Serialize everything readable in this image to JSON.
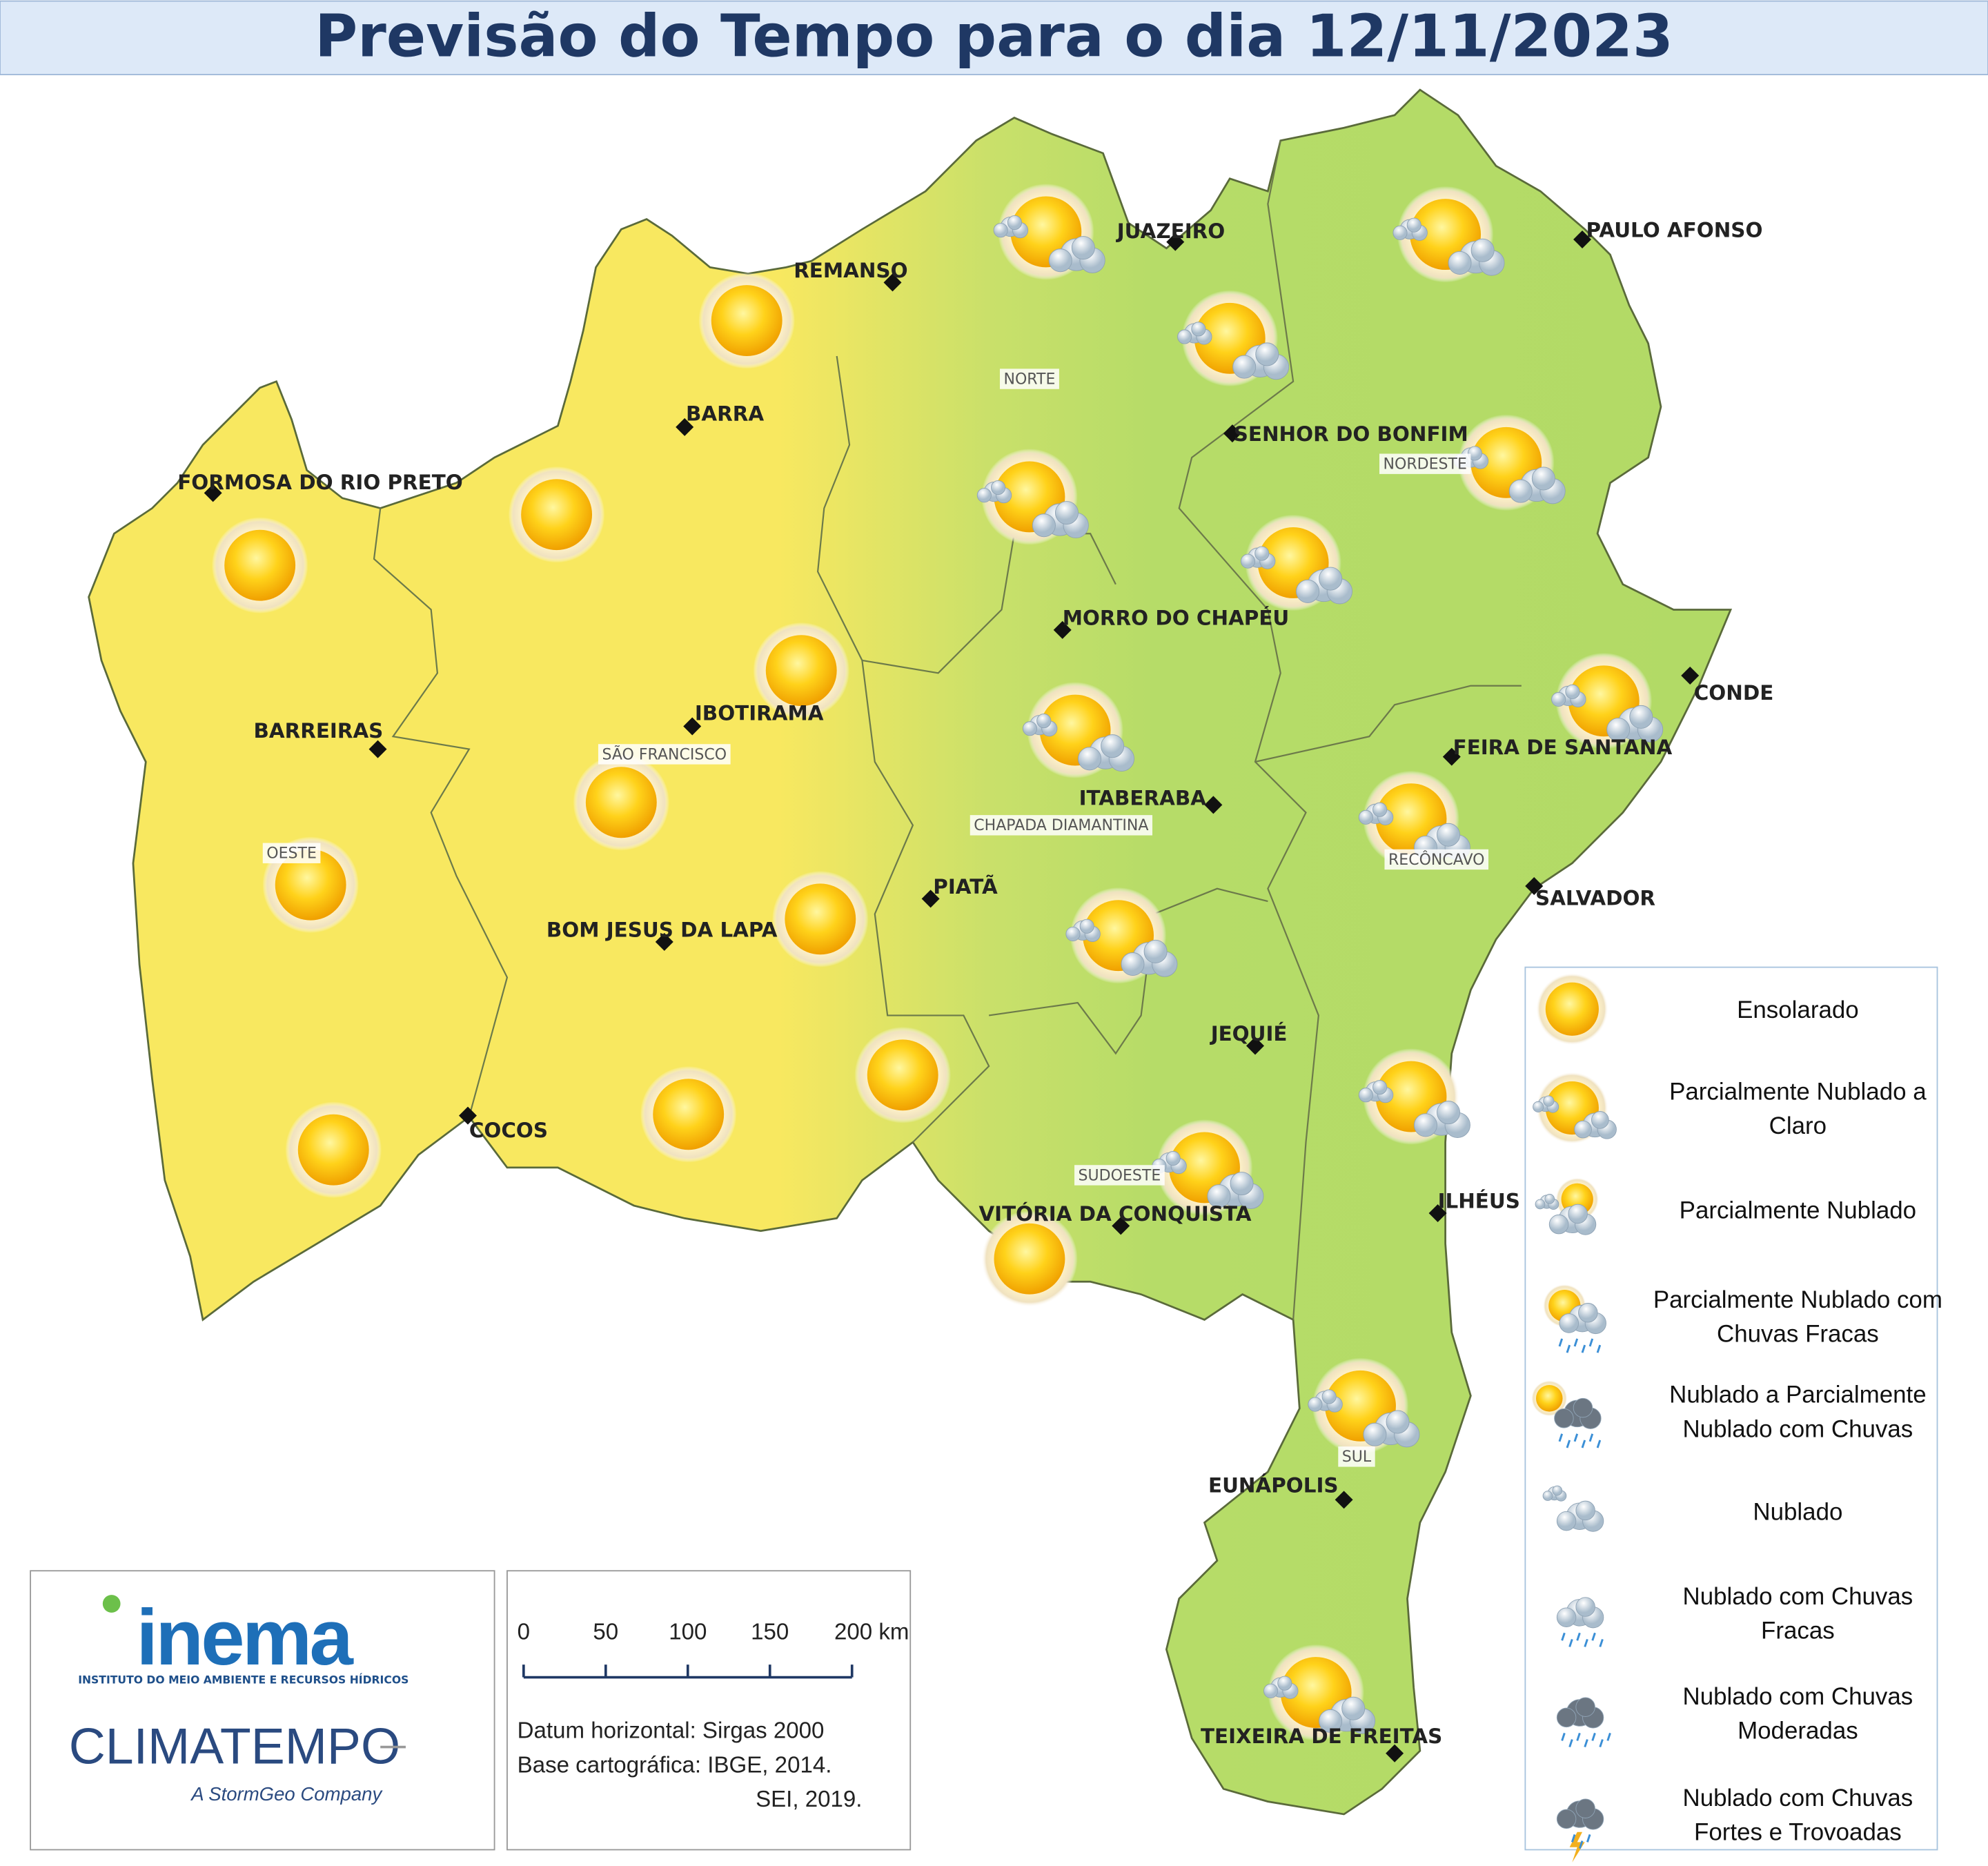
{
  "header": {
    "title": "Previsão do Tempo para o dia 12/11/2023"
  },
  "cities": [
    "REMANSO",
    "JUAZEIRO",
    "PAULO AFONSO",
    "BARRA",
    "FORMOSA DO RIO PRETO",
    "SENHOR DO BONFIM",
    "MORRO DO CHAPÉU",
    "CONDE",
    "IBOTIRAMA",
    "BARREIRAS",
    "FEIRA DE SANTANA",
    "ITABERABA",
    "PIATÃ",
    "SALVADOR",
    "BOM JESUS DA LAPA",
    "JEQUIÉ",
    "COCOS",
    "ILHÉUS",
    "VITÓRIA DA CONQUISTA",
    "EUNÁPOLIS",
    "TEIXEIRA DE FREITAS"
  ],
  "regions": [
    "NORTE",
    "NORDESTE",
    "SÃO FRANCISCO",
    "OESTE",
    "CHAPADA DIAMANTINA",
    "RECÔNCAVO",
    "SUDOESTE",
    "SUL"
  ],
  "legend": {
    "items": [
      [
        "Ensolarado"
      ],
      [
        "Parcialmente Nublado a",
        "Claro"
      ],
      [
        "Parcialmente Nublado"
      ],
      [
        "Parcialmente Nublado com",
        "Chuvas Fracas"
      ],
      [
        "Nublado a Parcialmente",
        "Nublado com Chuvas"
      ],
      [
        "Nublado"
      ],
      [
        "Nublado com Chuvas",
        "Fracas"
      ],
      [
        "Nublado com Chuvas",
        "Moderadas"
      ],
      [
        "Nublado com Chuvas",
        "Fortes e Trovoadas"
      ]
    ]
  },
  "logos": {
    "inema": "inema",
    "inema_subtitle": "INSTITUTO DO MEIO AMBIENTE E RECURSOS HÍDRICOS",
    "climatempo": "CLIMATEMPO",
    "climatempo_subtitle": "A StormGeo Company"
  },
  "scale_bar": {
    "labels": [
      "0",
      "50",
      "100",
      "150",
      "200 km"
    ]
  },
  "credits": [
    "Datum horizontal: Sirgas 2000",
    "Base cartográfica: IBGE, 2014.",
    "SEI, 2019."
  ]
}
